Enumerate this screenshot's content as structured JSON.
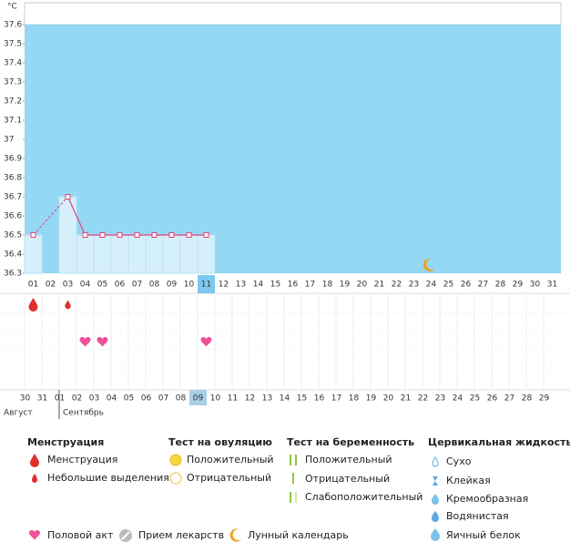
{
  "chart_data": {
    "type": "line",
    "y_label": "°C",
    "categories": [
      "01",
      "02",
      "03",
      "04",
      "05",
      "06",
      "07",
      "08",
      "09",
      "10",
      "11",
      "12",
      "13",
      "14",
      "15",
      "16",
      "17",
      "18",
      "19",
      "20",
      "21",
      "22",
      "23",
      "24",
      "25",
      "26",
      "27",
      "28",
      "29",
      "30",
      "31"
    ],
    "values": [
      36.5,
      null,
      36.7,
      36.5,
      36.5,
      36.5,
      36.5,
      36.5,
      36.5,
      36.5,
      36.5,
      null,
      null,
      null,
      null,
      null,
      null,
      null,
      null,
      null,
      null,
      null,
      null,
      null,
      null,
      null,
      null,
      null,
      null,
      null,
      null
    ],
    "color": "#e0457b",
    "fill": "#d6f0fb",
    "background": "#94d8f4",
    "ylim": [
      36.3,
      37.6
    ],
    "yticks": [
      36.3,
      36.4,
      36.5,
      36.6,
      36.7,
      36.8,
      36.9,
      37,
      37.1,
      37.2,
      37.3,
      37.4,
      37.5,
      37.6
    ],
    "highlight": "11",
    "moon_day": "24",
    "menstruation": [
      "heavy",
      null,
      "light",
      null,
      null,
      null,
      null,
      null,
      null,
      null,
      null,
      null,
      null,
      null,
      null,
      null,
      null,
      null,
      null,
      null,
      null,
      null,
      null,
      null,
      null,
      null,
      null,
      null,
      null,
      null,
      null
    ],
    "intercourse": [
      false,
      false,
      false,
      true,
      true,
      false,
      false,
      false,
      false,
      false,
      true,
      false,
      false,
      false,
      false,
      false,
      false,
      false,
      false,
      false,
      false,
      false,
      false,
      false,
      false,
      false,
      false,
      false,
      false,
      false,
      false
    ],
    "dates": [
      {
        "label": "30",
        "red": true
      },
      {
        "label": "31",
        "red": true
      },
      {
        "label": "01",
        "red": false
      },
      {
        "label": "02",
        "red": false
      },
      {
        "label": "03",
        "red": false
      },
      {
        "label": "04",
        "red": false
      },
      {
        "label": "05",
        "red": false
      },
      {
        "label": "06",
        "red": true
      },
      {
        "label": "07",
        "red": true
      },
      {
        "label": "08",
        "red": false
      },
      {
        "label": "09",
        "red": false,
        "highlight": true
      },
      {
        "label": "10",
        "red": false
      },
      {
        "label": "11",
        "red": false
      },
      {
        "label": "12",
        "red": false
      },
      {
        "label": "13",
        "red": true
      },
      {
        "label": "14",
        "red": true
      },
      {
        "label": "15",
        "red": false
      },
      {
        "label": "16",
        "red": false
      },
      {
        "label": "17",
        "red": false
      },
      {
        "label": "18",
        "red": false
      },
      {
        "label": "19",
        "red": false
      },
      {
        "label": "20",
        "red": true
      },
      {
        "label": "21",
        "red": true
      },
      {
        "label": "22",
        "red": false
      },
      {
        "label": "23",
        "red": false
      },
      {
        "label": "24",
        "red": false
      },
      {
        "label": "25",
        "red": false
      },
      {
        "label": "26",
        "red": false
      },
      {
        "label": "27",
        "red": true
      },
      {
        "label": "28",
        "red": true
      },
      {
        "label": "29",
        "red": false
      }
    ],
    "months": [
      "Август",
      "Сентябрь"
    ]
  },
  "legend": {
    "sections": [
      {
        "title": "Менструация",
        "items": [
          "Менструация",
          "Небольшие выделения"
        ]
      },
      {
        "title": "Тест на овуляцию",
        "items": [
          "Положительный",
          "Отрицательный"
        ]
      },
      {
        "title": "Тест на беременность",
        "items": [
          "Положительный",
          "Отрицательный",
          "Слабоположительный"
        ]
      },
      {
        "title": "Цервикальная жидкость",
        "items": [
          "Сухо",
          "Клейкая",
          "Кремообразная",
          "Водянистая",
          "Яичный белок"
        ]
      }
    ],
    "other": [
      "Половой акт",
      "Прием лекарств",
      "Лунный календарь"
    ]
  }
}
